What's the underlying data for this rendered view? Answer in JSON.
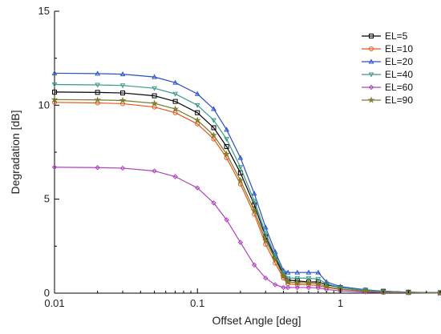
{
  "chart_data": {
    "type": "line",
    "xlabel": "Offset Angle [deg]",
    "ylabel": "Degradation [dB]",
    "xscale": "log",
    "xlim": [
      0.01,
      5
    ],
    "ylim": [
      0,
      15
    ],
    "x_ticks": [
      {
        "value": 0.01,
        "label": "0.01"
      },
      {
        "value": 0.1,
        "label": "0.1"
      },
      {
        "value": 1,
        "label": "1"
      }
    ],
    "y_ticks": [
      {
        "value": 0,
        "label": "0"
      },
      {
        "value": 5,
        "label": "5"
      },
      {
        "value": 10,
        "label": "10"
      },
      {
        "value": 15,
        "label": "15"
      }
    ],
    "grid": false,
    "legend_position": "top-right",
    "series": [
      {
        "name": "EL=5",
        "color": "#000000",
        "marker": "square",
        "x": [
          0.01,
          0.02,
          0.03,
          0.05,
          0.07,
          0.1,
          0.13,
          0.16,
          0.2,
          0.25,
          0.3,
          0.35,
          0.4,
          0.43,
          0.5,
          0.6,
          0.7,
          0.8,
          1,
          1.5,
          2,
          3,
          5
        ],
        "y": [
          10.7,
          10.68,
          10.65,
          10.5,
          10.2,
          9.6,
          8.8,
          7.8,
          6.4,
          4.7,
          3.0,
          1.9,
          1.0,
          0.7,
          0.65,
          0.6,
          0.6,
          0.45,
          0.3,
          0.15,
          0.1,
          0.05,
          0.02
        ]
      },
      {
        "name": "EL=10",
        "color": "#e8541c",
        "marker": "circle",
        "x": [
          0.01,
          0.02,
          0.03,
          0.05,
          0.07,
          0.1,
          0.13,
          0.16,
          0.2,
          0.25,
          0.3,
          0.35,
          0.4,
          0.43,
          0.5,
          0.6,
          0.7,
          0.8,
          1,
          1.5,
          2,
          3,
          5
        ],
        "y": [
          10.15,
          10.12,
          10.08,
          9.9,
          9.6,
          9.0,
          8.2,
          7.2,
          5.8,
          4.2,
          2.6,
          1.6,
          0.8,
          0.5,
          0.45,
          0.45,
          0.4,
          0.3,
          0.2,
          0.1,
          0.05,
          0.03,
          0.01
        ]
      },
      {
        "name": "EL=20",
        "color": "#2850c8",
        "marker": "triangle-up",
        "x": [
          0.01,
          0.02,
          0.03,
          0.05,
          0.07,
          0.1,
          0.13,
          0.16,
          0.2,
          0.25,
          0.3,
          0.35,
          0.4,
          0.43,
          0.5,
          0.6,
          0.7,
          0.8,
          1,
          1.5,
          2,
          3,
          5
        ],
        "y": [
          11.7,
          11.68,
          11.65,
          11.5,
          11.2,
          10.6,
          9.8,
          8.7,
          7.2,
          5.3,
          3.5,
          2.2,
          1.2,
          1.1,
          1.1,
          1.1,
          1.1,
          0.6,
          0.35,
          0.18,
          0.1,
          0.05,
          0.02
        ]
      },
      {
        "name": "EL=40",
        "color": "#3a9a8a",
        "marker": "triangle-down",
        "x": [
          0.01,
          0.02,
          0.03,
          0.05,
          0.07,
          0.1,
          0.13,
          0.16,
          0.2,
          0.25,
          0.3,
          0.35,
          0.4,
          0.43,
          0.5,
          0.6,
          0.7,
          0.8,
          1,
          1.5,
          2,
          3,
          5
        ],
        "y": [
          11.1,
          11.08,
          11.05,
          10.9,
          10.6,
          10.0,
          9.2,
          8.2,
          6.7,
          4.9,
          3.2,
          2.0,
          1.1,
          0.8,
          0.8,
          0.8,
          0.75,
          0.5,
          0.3,
          0.15,
          0.08,
          0.04,
          0.02
        ]
      },
      {
        "name": "EL=60",
        "color": "#b040c0",
        "marker": "diamond",
        "x": [
          0.01,
          0.02,
          0.03,
          0.05,
          0.07,
          0.1,
          0.13,
          0.16,
          0.2,
          0.25,
          0.3,
          0.35,
          0.4,
          0.43,
          0.5,
          0.6,
          0.7,
          0.8,
          1,
          1.5,
          2,
          3,
          5
        ],
        "y": [
          6.7,
          6.68,
          6.65,
          6.5,
          6.2,
          5.6,
          4.8,
          3.9,
          2.7,
          1.5,
          0.8,
          0.45,
          0.3,
          0.3,
          0.3,
          0.3,
          0.28,
          0.2,
          0.12,
          0.06,
          0.03,
          0.02,
          0.01
        ]
      },
      {
        "name": "EL=90",
        "color": "#7a7a28",
        "marker": "star",
        "x": [
          0.01,
          0.02,
          0.03,
          0.05,
          0.07,
          0.1,
          0.13,
          0.16,
          0.2,
          0.25,
          0.3,
          0.35,
          0.4,
          0.43,
          0.5,
          0.6,
          0.7,
          0.8,
          1,
          1.5,
          2,
          3,
          5
        ],
        "y": [
          10.3,
          10.28,
          10.25,
          10.1,
          9.8,
          9.2,
          8.4,
          7.4,
          6.0,
          4.4,
          2.8,
          1.8,
          0.9,
          0.6,
          0.55,
          0.55,
          0.5,
          0.35,
          0.22,
          0.11,
          0.06,
          0.03,
          0.01
        ]
      }
    ]
  }
}
